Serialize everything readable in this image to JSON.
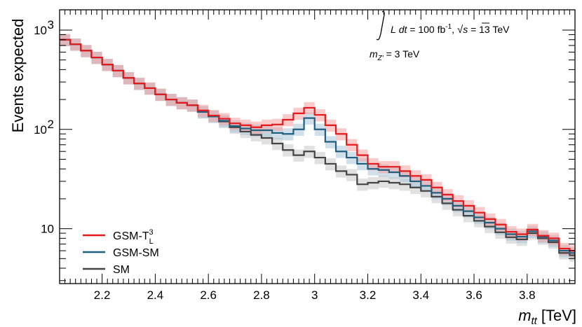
{
  "chart_data": {
    "type": "line",
    "title": "",
    "xlabel": "m",
    "xlabel_sub": "tt",
    "xlabel_unit": "[TeV]",
    "ylabel": "Events expected",
    "xlim": [
      2.04,
      3.98
    ],
    "ylim": [
      2.8,
      1600
    ],
    "yscale": "log",
    "x_ticks": [
      "2.2",
      "2.4",
      "2.6",
      "2.8",
      "3",
      "3.2",
      "3.4",
      "3.6",
      "3.8"
    ],
    "x_tick_values": [
      2.2,
      2.4,
      2.6,
      2.8,
      3.0,
      3.2,
      3.4,
      3.6,
      3.8
    ],
    "y_ticks": [
      {
        "value": 10,
        "base": "10",
        "exp": ""
      },
      {
        "value": 100,
        "base": "10",
        "exp": "2"
      },
      {
        "value": 1000,
        "base": "10",
        "exp": "3"
      }
    ],
    "annotation": {
      "line1_l": "L",
      "line1_dt": "dt",
      "line1_mid": " = 100 fb",
      "line1_exp": "-1",
      "line1_sep": ", ",
      "line1_s": "s",
      "line1_end": " = 13 TeV",
      "line2_m": "m",
      "line2_sub": "Z'",
      "line2_end": " = 3 TeV"
    },
    "legend_position": "bottom-left",
    "bin_edges": [
      2.04,
      2.08,
      2.12,
      2.16,
      2.2,
      2.24,
      2.28,
      2.32,
      2.36,
      2.4,
      2.44,
      2.48,
      2.52,
      2.56,
      2.6,
      2.64,
      2.68,
      2.72,
      2.76,
      2.8,
      2.84,
      2.88,
      2.92,
      2.96,
      3.0,
      3.04,
      3.08,
      3.12,
      3.16,
      3.2,
      3.24,
      3.28,
      3.32,
      3.36,
      3.4,
      3.44,
      3.48,
      3.52,
      3.56,
      3.6,
      3.64,
      3.68,
      3.72,
      3.76,
      3.8,
      3.84,
      3.88,
      3.92,
      3.96,
      3.98
    ],
    "series": [
      {
        "name": "GSM-T",
        "name_sup": "3",
        "name_sub": "L",
        "color": "#e41a1c",
        "band_color": "#f4a0a0",
        "values": [
          800,
          720,
          620,
          530,
          450,
          390,
          330,
          290,
          260,
          225,
          200,
          185,
          175,
          155,
          138,
          128,
          115,
          110,
          105,
          110,
          112,
          125,
          145,
          165,
          140,
          110,
          90,
          70,
          55,
          45,
          42,
          42,
          38,
          34,
          31,
          26,
          22,
          19,
          17,
          14.5,
          12.5,
          11,
          9.3,
          8.8,
          9.8,
          8.5,
          8.0,
          6.3,
          6.0,
          5.4
        ]
      },
      {
        "name": "GSM-SM",
        "name_sup": "",
        "name_sub": "",
        "color": "#1f5f7f",
        "band_color": "#a8c6d8",
        "values": [
          800,
          720,
          620,
          530,
          450,
          390,
          330,
          290,
          260,
          225,
          200,
          185,
          175,
          150,
          135,
          122,
          108,
          102,
          98,
          98,
          92,
          90,
          100,
          130,
          100,
          75,
          60,
          52,
          45,
          40,
          39,
          37,
          34,
          30,
          27,
          23,
          20,
          17,
          15,
          13,
          11.5,
          10,
          8.8,
          8.3,
          9.4,
          8.3,
          7.6,
          6.0,
          5.7,
          5.2
        ]
      },
      {
        "name": "SM",
        "name_sup": "",
        "name_sub": "",
        "color": "#444444",
        "band_color": "#c8c8c8",
        "values": [
          800,
          720,
          620,
          530,
          450,
          390,
          330,
          290,
          260,
          225,
          200,
          185,
          175,
          150,
          135,
          120,
          105,
          95,
          88,
          82,
          72,
          62,
          55,
          60,
          52,
          45,
          38,
          35,
          28,
          29,
          30,
          29,
          28,
          26,
          24,
          21,
          18,
          15.5,
          13.5,
          12,
          10.5,
          9.2,
          8.2,
          7.8,
          9.0,
          8.0,
          7.3,
          5.7,
          5.4,
          5.0
        ]
      }
    ]
  }
}
